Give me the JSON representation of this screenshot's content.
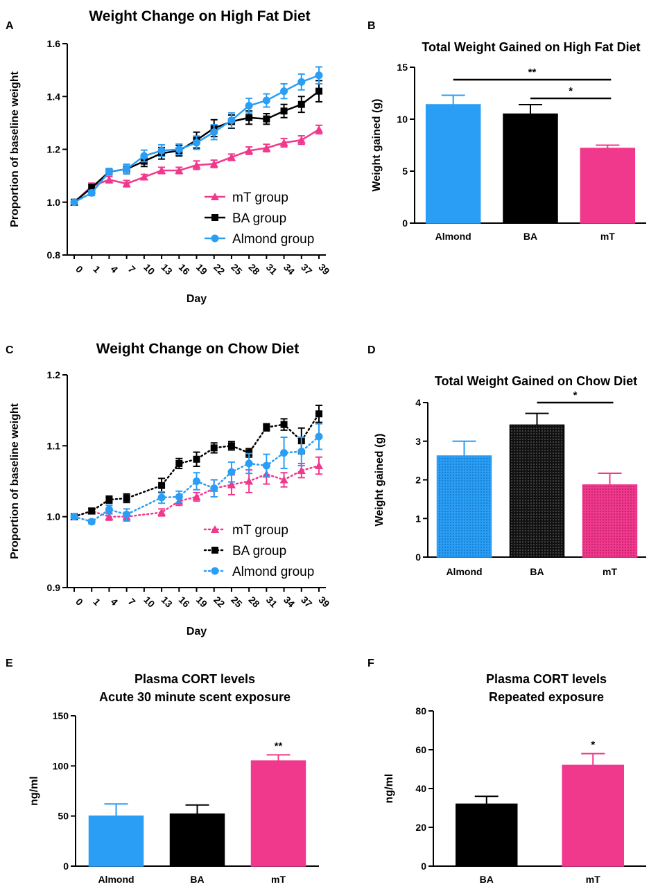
{
  "chart_data": [
    {
      "panel": "A",
      "type": "line",
      "title": "Weight Change on High Fat Diet",
      "xlabel": "Day",
      "ylabel": "Proportion of baseline weight",
      "ylim": [
        0.8,
        1.6
      ],
      "yticks": [
        "0.8",
        "1.0",
        "1.2",
        "1.4",
        "1.6"
      ],
      "x": [
        0,
        1,
        4,
        7,
        10,
        13,
        16,
        19,
        22,
        25,
        28,
        31,
        34,
        37,
        39
      ],
      "line_style": "solid",
      "legend": "bottom-right",
      "series": [
        {
          "name": "mT group",
          "marker": "triangle",
          "color": "#F0388C",
          "values": [
            1.0,
            1.06,
            1.085,
            1.07,
            1.095,
            1.12,
            1.12,
            1.14,
            1.145,
            1.17,
            1.195,
            1.205,
            1.225,
            1.235,
            1.275
          ],
          "errors": [
            0.005,
            0.012,
            0.012,
            0.012,
            0.01,
            0.012,
            0.012,
            0.016,
            0.014,
            0.012,
            0.014,
            0.014,
            0.016,
            0.016,
            0.016
          ]
        },
        {
          "name": "BA group",
          "marker": "square",
          "color": "#000000",
          "values": [
            1.0,
            1.055,
            1.115,
            1.125,
            1.155,
            1.185,
            1.195,
            1.235,
            1.28,
            1.305,
            1.32,
            1.315,
            1.345,
            1.37,
            1.42
          ],
          "errors": [
            0.005,
            0.012,
            0.012,
            0.018,
            0.02,
            0.022,
            0.02,
            0.03,
            0.032,
            0.025,
            0.025,
            0.02,
            0.025,
            0.03,
            0.04
          ]
        },
        {
          "name": "Almond group",
          "marker": "circle",
          "color": "#2A9DF4",
          "values": [
            1.0,
            1.035,
            1.115,
            1.125,
            1.175,
            1.195,
            1.2,
            1.225,
            1.265,
            1.31,
            1.365,
            1.385,
            1.42,
            1.455,
            1.48
          ],
          "errors": [
            0.005,
            0.01,
            0.012,
            0.018,
            0.022,
            0.022,
            0.02,
            0.025,
            0.028,
            0.028,
            0.028,
            0.025,
            0.028,
            0.03,
            0.032
          ]
        }
      ]
    },
    {
      "panel": "B",
      "type": "bar",
      "title": "Total Weight Gained on High Fat Diet",
      "xlabel": "",
      "ylabel": "Weight gained (g)",
      "ylim": [
        0,
        15
      ],
      "yticks": [
        "0",
        "5",
        "10",
        "15"
      ],
      "categories": [
        "Almond",
        "BA",
        "mT"
      ],
      "values": [
        11.4,
        10.5,
        7.2
      ],
      "errors": [
        0.9,
        0.9,
        0.3
      ],
      "colors": [
        "#2A9DF4",
        "#000000",
        "#F0388C"
      ],
      "pattern": "solid",
      "significance": [
        {
          "from": 0,
          "to": 2,
          "label": "**",
          "y": 13.8
        },
        {
          "from": 1,
          "to": 2,
          "label": "*",
          "y": 12.0
        }
      ]
    },
    {
      "panel": "C",
      "type": "line",
      "title": "Weight Change on Chow Diet",
      "xlabel": "Day",
      "ylabel": "Proportion of baseline weight",
      "ylim": [
        0.9,
        1.2
      ],
      "yticks": [
        "0.9",
        "1.0",
        "1.1",
        "1.2"
      ],
      "x": [
        0,
        1,
        4,
        7,
        10,
        13,
        16,
        19,
        22,
        25,
        28,
        31,
        34,
        37,
        39
      ],
      "line_style": "dotted",
      "legend": "bottom-right",
      "series": [
        {
          "name": "mT group",
          "marker": "triangle",
          "color": "#F0388C",
          "x": [
            0,
            1,
            4,
            7,
            13,
            16,
            19,
            22,
            25,
            28,
            31,
            34,
            37,
            39
          ],
          "values": [
            1.0,
            1.008,
            1.0,
            1.0,
            1.006,
            1.022,
            1.028,
            1.04,
            1.045,
            1.05,
            1.06,
            1.052,
            1.065,
            1.072
          ],
          "errors": [
            0.002,
            0.004,
            0.005,
            0.006,
            0.005,
            0.006,
            0.006,
            0.012,
            0.014,
            0.016,
            0.014,
            0.01,
            0.01,
            0.012
          ]
        },
        {
          "name": "BA group",
          "marker": "square",
          "color": "#000000",
          "x": [
            0,
            1,
            4,
            7,
            13,
            16,
            19,
            22,
            25,
            28,
            31,
            34,
            37,
            39
          ],
          "values": [
            1.0,
            1.008,
            1.024,
            1.026,
            1.044,
            1.075,
            1.081,
            1.097,
            1.1,
            1.09,
            1.126,
            1.13,
            1.107,
            1.145
          ],
          "errors": [
            0.002,
            0.004,
            0.005,
            0.006,
            0.01,
            0.007,
            0.01,
            0.007,
            0.006,
            0.006,
            0.005,
            0.008,
            0.018,
            0.012
          ]
        },
        {
          "name": "Almond group",
          "marker": "circle",
          "color": "#2A9DF4",
          "x": [
            0,
            1,
            4,
            7,
            13,
            16,
            19,
            22,
            25,
            28,
            31,
            34,
            37,
            39
          ],
          "values": [
            1.0,
            0.993,
            1.01,
            1.003,
            1.027,
            1.028,
            1.05,
            1.04,
            1.063,
            1.075,
            1.072,
            1.09,
            1.092,
            1.113
          ],
          "errors": [
            0.002,
            0.003,
            0.006,
            0.008,
            0.008,
            0.008,
            0.012,
            0.012,
            0.014,
            0.014,
            0.016,
            0.022,
            0.02,
            0.018
          ]
        }
      ]
    },
    {
      "panel": "D",
      "type": "bar",
      "title": "Total Weight Gained on Chow Diet",
      "xlabel": "",
      "ylabel": "Weight gained (g)",
      "ylim": [
        0,
        4
      ],
      "yticks": [
        "0",
        "1",
        "2",
        "3",
        "4"
      ],
      "categories": [
        "Almond",
        "BA",
        "mT"
      ],
      "values": [
        2.62,
        3.42,
        1.87
      ],
      "errors": [
        0.38,
        0.3,
        0.3
      ],
      "colors": [
        "#2A9DF4",
        "#000000",
        "#F0388C"
      ],
      "pattern": "dotted",
      "significance": [
        {
          "from": 1,
          "to": 2,
          "label": "*",
          "y": 4.0
        }
      ]
    },
    {
      "panel": "E",
      "type": "bar",
      "title": "Plasma CORT levels",
      "subtitle": "Acute 30 minute scent exposure",
      "xlabel": "",
      "ylabel": "ng/ml",
      "ylim": [
        0,
        150
      ],
      "yticks": [
        "0",
        "50",
        "100",
        "150"
      ],
      "categories": [
        "Almond",
        "BA",
        "mT"
      ],
      "values": [
        50,
        52,
        105
      ],
      "errors": [
        12,
        9,
        6
      ],
      "colors": [
        "#2A9DF4",
        "#000000",
        "#F0388C"
      ],
      "pattern": "solid",
      "annotations": [
        {
          "index": 2,
          "label": "**"
        }
      ]
    },
    {
      "panel": "F",
      "type": "bar",
      "title": "Plasma CORT levels",
      "subtitle": "Repeated exposure",
      "xlabel": "",
      "ylabel": "ng/ml",
      "ylim": [
        0,
        80
      ],
      "yticks": [
        "0",
        "20",
        "40",
        "60",
        "80"
      ],
      "categories": [
        "BA",
        "mT"
      ],
      "values": [
        32,
        52
      ],
      "errors": [
        4,
        6
      ],
      "colors": [
        "#000000",
        "#F0388C"
      ],
      "pattern": "solid",
      "annotations": [
        {
          "index": 1,
          "label": "*"
        }
      ]
    }
  ]
}
